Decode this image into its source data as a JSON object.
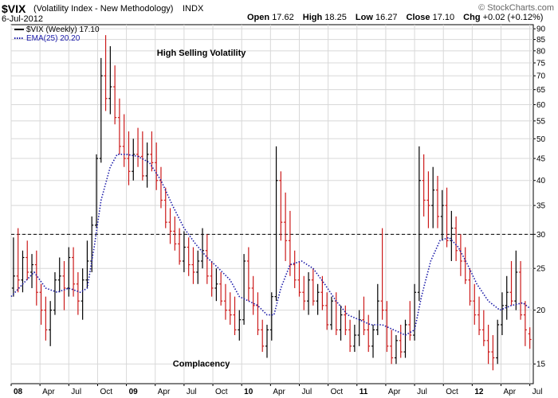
{
  "header": {
    "symbol": "$VIX",
    "description": "(Volatility Index - New Methodology)",
    "exchange": "INDX",
    "date": "6-Jul-2012",
    "open_label": "Open",
    "open": "17.62",
    "high_label": "High",
    "high": "18.25",
    "low_label": "Low",
    "low": "16.27",
    "close_label": "Close",
    "close": "17.10",
    "chg_label": "Chg",
    "chg": "+0.02 (+0.12%)",
    "credit": "© StockCharts.com"
  },
  "chart_data": {
    "type": "ohlc-bar",
    "scale": "log",
    "ylim": [
      13.5,
      92
    ],
    "y_ticks": [
      15,
      20,
      25,
      30,
      35,
      40,
      45,
      50,
      55,
      60,
      65,
      70,
      75,
      80,
      85,
      90
    ],
    "x_ticks": [
      {
        "label": "08",
        "t": 0.0,
        "major": true
      },
      {
        "label": "Apr",
        "t": 0.25
      },
      {
        "label": "Jul",
        "t": 0.5
      },
      {
        "label": "Oct",
        "t": 0.75
      },
      {
        "label": "09",
        "t": 1.0,
        "major": true
      },
      {
        "label": "Apr",
        "t": 1.25
      },
      {
        "label": "Jul",
        "t": 1.5
      },
      {
        "label": "Oct",
        "t": 1.75
      },
      {
        "label": "10",
        "t": 2.0,
        "major": true
      },
      {
        "label": "Apr",
        "t": 2.25
      },
      {
        "label": "Jul",
        "t": 2.5
      },
      {
        "label": "Oct",
        "t": 2.75
      },
      {
        "label": "11",
        "t": 3.0,
        "major": true
      },
      {
        "label": "Apr",
        "t": 3.25
      },
      {
        "label": "Jul",
        "t": 3.5
      },
      {
        "label": "Oct",
        "t": 3.75
      },
      {
        "label": "12",
        "t": 4.0,
        "major": true
      },
      {
        "label": "Apr",
        "t": 4.25
      },
      {
        "label": "Jul",
        "t": 4.5
      }
    ],
    "xlim": [
      0,
      4.53
    ],
    "legend": [
      {
        "name": "$VIX (Weekly) 17.10",
        "color": "#000000",
        "style": "solid"
      },
      {
        "name": "EMA(25) 20.20",
        "color": "#1a1aa8",
        "style": "dotted"
      }
    ],
    "reference_line": {
      "value": 30,
      "style": "dashed"
    },
    "annotations": [
      {
        "text": "High Selling Volatility",
        "t": 1.65,
        "y": 78
      },
      {
        "text": "Complacency",
        "t": 1.65,
        "y": 14.8
      }
    ],
    "series": [
      {
        "name": "$VIX (Weekly) 17.10",
        "ohlc": [
          [
            0.02,
            22.5,
            29.5,
            21.5,
            24.0
          ],
          [
            0.06,
            24.0,
            31.0,
            22.0,
            23.5
          ],
          [
            0.1,
            23.5,
            27.5,
            22.0,
            26.5
          ],
          [
            0.14,
            26.5,
            29.0,
            23.5,
            24.5
          ],
          [
            0.18,
            24.5,
            27.0,
            22.5,
            25.5
          ],
          [
            0.22,
            25.5,
            27.5,
            20.5,
            22.0
          ],
          [
            0.26,
            22.0,
            23.0,
            18.5,
            20.0
          ],
          [
            0.3,
            20.0,
            21.5,
            17.0,
            18.0
          ],
          [
            0.34,
            18.0,
            21.0,
            16.5,
            20.0
          ],
          [
            0.38,
            20.0,
            24.5,
            19.5,
            23.5
          ],
          [
            0.42,
            23.5,
            26.5,
            22.0,
            24.0
          ],
          [
            0.46,
            24.0,
            26.0,
            20.0,
            22.5
          ],
          [
            0.5,
            22.5,
            28.0,
            21.5,
            26.5
          ],
          [
            0.54,
            26.5,
            28.0,
            21.5,
            23.0
          ],
          [
            0.58,
            23.0,
            24.5,
            19.5,
            21.0
          ],
          [
            0.62,
            21.0,
            25.0,
            19.0,
            23.5
          ],
          [
            0.66,
            23.5,
            29.0,
            22.5,
            26.0
          ],
          [
            0.7,
            26.0,
            33.0,
            24.5,
            31.5
          ],
          [
            0.74,
            31.5,
            46.0,
            31.0,
            45.0
          ],
          [
            0.78,
            45.0,
            77.0,
            44.0,
            70.0
          ],
          [
            0.82,
            70.0,
            87.0,
            58.0,
            62.0
          ],
          [
            0.86,
            62.0,
            82.0,
            57.0,
            66.0
          ],
          [
            0.9,
            66.0,
            74.0,
            54.0,
            56.0
          ],
          [
            0.94,
            56.0,
            62.0,
            46.0,
            48.0
          ],
          [
            0.98,
            48.0,
            57.0,
            43.0,
            45.0
          ],
          [
            1.02,
            45.0,
            52.0,
            39.0,
            42.0
          ],
          [
            1.06,
            42.0,
            50.0,
            40.0,
            46.0
          ],
          [
            1.1,
            46.0,
            53.0,
            43.0,
            45.5
          ],
          [
            1.14,
            45.5,
            52.0,
            40.0,
            41.0
          ],
          [
            1.18,
            41.0,
            49.0,
            38.5,
            46.0
          ],
          [
            1.22,
            46.0,
            52.0,
            42.0,
            44.0
          ],
          [
            1.26,
            44.0,
            49.0,
            38.0,
            40.0
          ],
          [
            1.3,
            40.0,
            43.0,
            34.5,
            36.0
          ],
          [
            1.34,
            36.0,
            38.5,
            31.0,
            32.0
          ],
          [
            1.38,
            32.0,
            34.5,
            28.5,
            30.5
          ],
          [
            1.42,
            30.5,
            33.0,
            27.5,
            28.5
          ],
          [
            1.46,
            28.5,
            31.0,
            25.5,
            26.0
          ],
          [
            1.5,
            26.0,
            30.5,
            24.5,
            28.0
          ],
          [
            1.54,
            28.0,
            29.5,
            24.0,
            25.5
          ],
          [
            1.58,
            25.5,
            28.0,
            23.0,
            24.5
          ],
          [
            1.62,
            24.5,
            27.5,
            23.0,
            26.0
          ],
          [
            1.66,
            26.0,
            31.0,
            25.0,
            27.5
          ],
          [
            1.7,
            27.5,
            30.0,
            23.0,
            24.0
          ],
          [
            1.74,
            24.0,
            26.0,
            21.5,
            22.5
          ],
          [
            1.78,
            22.5,
            25.0,
            21.0,
            23.0
          ],
          [
            1.82,
            23.0,
            24.5,
            20.5,
            21.0
          ],
          [
            1.86,
            21.0,
            23.0,
            19.0,
            20.0
          ],
          [
            1.9,
            20.0,
            22.0,
            18.5,
            19.5
          ],
          [
            1.94,
            19.5,
            21.5,
            17.5,
            18.0
          ],
          [
            1.98,
            18.0,
            20.0,
            17.0,
            19.0
          ],
          [
            2.02,
            19.0,
            27.0,
            18.5,
            26.0
          ],
          [
            2.06,
            26.0,
            28.0,
            21.0,
            22.5
          ],
          [
            2.1,
            22.5,
            24.0,
            19.5,
            20.5
          ],
          [
            2.14,
            20.5,
            22.0,
            17.5,
            18.0
          ],
          [
            2.18,
            18.0,
            19.0,
            16.0,
            16.5
          ],
          [
            2.22,
            16.5,
            18.5,
            15.5,
            18.0
          ],
          [
            2.26,
            18.0,
            22.0,
            17.0,
            21.5
          ],
          [
            2.3,
            21.5,
            48.0,
            21.0,
            40.0
          ],
          [
            2.34,
            40.0,
            42.0,
            29.0,
            32.0
          ],
          [
            2.38,
            32.0,
            37.5,
            26.0,
            29.0
          ],
          [
            2.42,
            29.0,
            34.0,
            24.0,
            25.5
          ],
          [
            2.46,
            25.5,
            27.5,
            22.5,
            23.5
          ],
          [
            2.5,
            23.5,
            26.0,
            21.5,
            22.0
          ],
          [
            2.54,
            22.0,
            24.0,
            20.0,
            21.0
          ],
          [
            2.58,
            21.0,
            24.5,
            19.5,
            23.5
          ],
          [
            2.62,
            23.5,
            25.0,
            20.5,
            21.0
          ],
          [
            2.66,
            21.0,
            23.0,
            19.5,
            22.0
          ],
          [
            2.7,
            22.0,
            24.0,
            20.0,
            20.5
          ],
          [
            2.74,
            20.5,
            22.0,
            18.0,
            18.5
          ],
          [
            2.78,
            18.5,
            21.5,
            18.0,
            21.0
          ],
          [
            2.82,
            21.0,
            22.0,
            17.5,
            18.0
          ],
          [
            2.86,
            18.0,
            20.5,
            17.0,
            19.5
          ],
          [
            2.9,
            19.5,
            20.5,
            17.5,
            18.0
          ],
          [
            2.94,
            18.0,
            19.0,
            16.0,
            16.5
          ],
          [
            2.98,
            16.5,
            18.5,
            16.0,
            17.5
          ],
          [
            3.02,
            17.5,
            20.0,
            16.5,
            19.0
          ],
          [
            3.06,
            19.0,
            21.5,
            17.5,
            18.0
          ],
          [
            3.1,
            18.0,
            19.5,
            16.0,
            16.5
          ],
          [
            3.14,
            16.5,
            18.5,
            15.5,
            18.0
          ],
          [
            3.18,
            18.0,
            23.0,
            17.5,
            21.0
          ],
          [
            3.22,
            21.0,
            31.0,
            19.0,
            20.0
          ],
          [
            3.26,
            20.0,
            21.0,
            16.0,
            16.5
          ],
          [
            3.3,
            16.5,
            18.0,
            15.0,
            15.5
          ],
          [
            3.34,
            15.5,
            17.5,
            15.0,
            17.0
          ],
          [
            3.38,
            17.0,
            18.5,
            15.5,
            16.0
          ],
          [
            3.42,
            16.0,
            19.0,
            15.5,
            18.5
          ],
          [
            3.46,
            18.5,
            21.0,
            17.0,
            17.5
          ],
          [
            3.5,
            17.5,
            23.0,
            17.0,
            22.0
          ],
          [
            3.54,
            22.0,
            48.0,
            21.0,
            40.0
          ],
          [
            3.58,
            40.0,
            46.0,
            33.0,
            36.0
          ],
          [
            3.62,
            36.0,
            42.0,
            31.0,
            35.0
          ],
          [
            3.66,
            35.0,
            43.0,
            31.0,
            38.0
          ],
          [
            3.7,
            38.0,
            41.0,
            31.0,
            33.0
          ],
          [
            3.74,
            33.0,
            38.0,
            29.0,
            35.0
          ],
          [
            3.78,
            35.0,
            38.5,
            28.0,
            29.0
          ],
          [
            3.82,
            29.0,
            34.0,
            26.0,
            31.0
          ],
          [
            3.86,
            31.0,
            33.0,
            26.0,
            27.5
          ],
          [
            3.9,
            27.5,
            30.0,
            24.0,
            26.0
          ],
          [
            3.94,
            26.0,
            28.0,
            23.0,
            23.5
          ],
          [
            3.98,
            23.5,
            25.0,
            20.5,
            21.0
          ],
          [
            4.02,
            21.0,
            23.0,
            18.5,
            19.5
          ],
          [
            4.06,
            19.5,
            21.5,
            17.5,
            18.0
          ],
          [
            4.1,
            18.0,
            20.0,
            16.5,
            17.0
          ],
          [
            4.14,
            17.0,
            18.5,
            15.0,
            16.0
          ],
          [
            4.18,
            16.0,
            17.5,
            14.5,
            15.5
          ],
          [
            4.22,
            15.5,
            19.0,
            15.0,
            18.5
          ],
          [
            4.26,
            18.5,
            22.0,
            17.5,
            20.5
          ],
          [
            4.3,
            20.5,
            24.0,
            19.0,
            22.0
          ],
          [
            4.34,
            22.0,
            26.0,
            20.5,
            21.0
          ],
          [
            4.38,
            21.0,
            27.5,
            20.0,
            24.5
          ],
          [
            4.42,
            24.5,
            26.0,
            19.0,
            19.5
          ],
          [
            4.46,
            19.5,
            21.0,
            16.5,
            18.0
          ],
          [
            4.5,
            17.62,
            18.25,
            16.27,
            17.1
          ]
        ]
      },
      {
        "name": "EMA(25) 20.20",
        "points": [
          [
            0.0,
            21.5
          ],
          [
            0.1,
            23.0
          ],
          [
            0.2,
            24.5
          ],
          [
            0.3,
            22.5
          ],
          [
            0.4,
            22.0
          ],
          [
            0.5,
            22.5
          ],
          [
            0.6,
            22.0
          ],
          [
            0.66,
            22.5
          ],
          [
            0.72,
            28.0
          ],
          [
            0.78,
            36.0
          ],
          [
            0.86,
            43.0
          ],
          [
            0.92,
            46.0
          ],
          [
            1.0,
            46.0
          ],
          [
            1.1,
            45.5
          ],
          [
            1.2,
            44.0
          ],
          [
            1.3,
            40.0
          ],
          [
            1.4,
            35.0
          ],
          [
            1.5,
            31.0
          ],
          [
            1.6,
            28.5
          ],
          [
            1.7,
            26.5
          ],
          [
            1.8,
            25.0
          ],
          [
            1.9,
            23.5
          ],
          [
            1.98,
            21.5
          ],
          [
            2.06,
            21.0
          ],
          [
            2.14,
            20.5
          ],
          [
            2.22,
            19.5
          ],
          [
            2.28,
            19.5
          ],
          [
            2.34,
            22.5
          ],
          [
            2.42,
            25.5
          ],
          [
            2.52,
            26.0
          ],
          [
            2.62,
            25.0
          ],
          [
            2.72,
            23.0
          ],
          [
            2.82,
            21.0
          ],
          [
            2.92,
            19.5
          ],
          [
            3.02,
            19.0
          ],
          [
            3.12,
            18.5
          ],
          [
            3.22,
            18.5
          ],
          [
            3.32,
            18.0
          ],
          [
            3.42,
            17.5
          ],
          [
            3.5,
            18.0
          ],
          [
            3.56,
            21.5
          ],
          [
            3.64,
            26.0
          ],
          [
            3.72,
            29.0
          ],
          [
            3.8,
            29.5
          ],
          [
            3.88,
            28.0
          ],
          [
            3.96,
            25.5
          ],
          [
            4.04,
            23.0
          ],
          [
            4.14,
            21.0
          ],
          [
            4.24,
            20.0
          ],
          [
            4.34,
            20.5
          ],
          [
            4.44,
            20.8
          ],
          [
            4.5,
            20.2
          ]
        ]
      }
    ]
  }
}
